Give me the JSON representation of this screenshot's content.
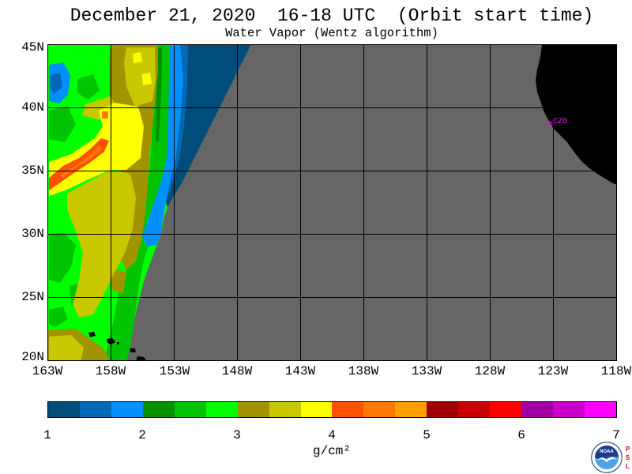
{
  "title": "December 21, 2020  16-18 UTC  (Orbit start time)",
  "subtitle": "Water Vapor (Wentz algorithm)",
  "map": {
    "lat_labels": [
      "45N",
      "40N",
      "35N",
      "30N",
      "25N",
      "20N"
    ],
    "lon_labels": [
      "163W",
      "158W",
      "153W",
      "148W",
      "143W",
      "138W",
      "133W",
      "128W",
      "123W",
      "118W"
    ],
    "station_label": "CZD",
    "colors": {
      "no_data": "#666666",
      "land": "#000000",
      "grid": "#000000",
      "station": "#ff00ff"
    }
  },
  "colorbar": {
    "colors": [
      "#004c7a",
      "#0068b4",
      "#0090ff",
      "#009000",
      "#00c400",
      "#00ff00",
      "#a09400",
      "#c8c800",
      "#ffff00",
      "#ff5000",
      "#ff7800",
      "#ffa000",
      "#a00000",
      "#c80000",
      "#ff0000",
      "#a000a0",
      "#c800c8",
      "#ff00ff"
    ],
    "labels": [
      "1",
      "2",
      "3",
      "4",
      "5",
      "6",
      "7"
    ],
    "units": "g/cm²"
  },
  "logo": {
    "text": "NOAA",
    "side_text": "PSL"
  }
}
